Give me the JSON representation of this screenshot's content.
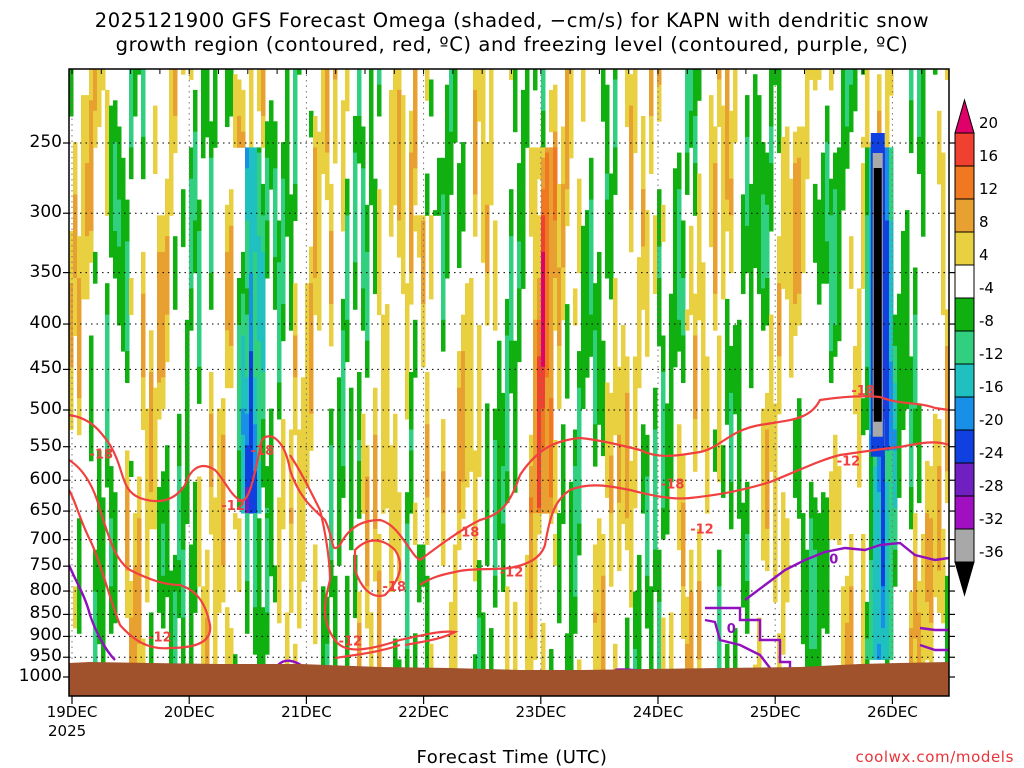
{
  "title_line1": "2025121900 GFS Forecast Omega (shaded, −cm/s) for KAPN with dendritic snow",
  "title_line2": "growth region (contoured, red, ºC) and freezing level (contoured, purple, ºC)",
  "credit": "coolwx.com/models",
  "chart_data": {
    "type": "heatmap",
    "title": "2025121900 GFS Forecast Omega (shaded, −cm/s) for KAPN with dendritic snow growth region (contoured, red, ºC) and freezing level (contoured, purple, ºC)",
    "xlabel": "Forecast Time (UTC)",
    "ylabel": "",
    "x_ticks": [
      "19DEC",
      "20DEC",
      "21DEC",
      "22DEC",
      "23DEC",
      "24DEC",
      "25DEC",
      "26DEC"
    ],
    "x_tick_year": "2025",
    "y_ticks": [
      250,
      300,
      350,
      400,
      450,
      500,
      550,
      600,
      650,
      700,
      750,
      800,
      850,
      900,
      950,
      1000
    ],
    "y_axis": "pressure (hPa), inverted",
    "xlim": [
      "2025-12-19 00Z",
      "2025-12-26 12Z"
    ],
    "ylim": [
      1020,
      200
    ],
    "grid": true,
    "colorbar": {
      "labels": [
        20,
        16,
        12,
        8,
        4,
        -4,
        -8,
        -12,
        -16,
        -20,
        -24,
        -28,
        -32,
        -36
      ],
      "colors": [
        "#e0006a",
        "#f04030",
        "#f07820",
        "#e8a030",
        "#e8d040",
        "#ffffff",
        "#10b010",
        "#30d080",
        "#20c0c0",
        "#1890e8",
        "#1040e0",
        "#7020c0",
        "#a010c0",
        "#a8a8a8",
        "#000000"
      ]
    },
    "shaded_features": [
      {
        "time": "2025-12-20 12Z",
        "p_range": [
          650,
          250
        ],
        "omega": -20
      },
      {
        "time": "2025-12-22 00Z",
        "p_range": [
          700,
          300
        ],
        "omega": 8
      },
      {
        "time": "2025-12-23 00Z",
        "p_range": [
          650,
          250
        ],
        "omega": 12
      },
      {
        "time": "2025-12-25 21Z",
        "p_range": [
          550,
          250
        ],
        "omega": -36
      },
      {
        "time": "2025-12-25 21Z",
        "p_range": [
          950,
          550
        ],
        "omega": -16
      }
    ],
    "contour_labels": [
      {
        "series": "dendritic",
        "value": -18,
        "time": "2025-12-19 06Z",
        "p": 560
      },
      {
        "series": "dendritic",
        "value": -18,
        "time": "2025-12-20 15Z",
        "p": 555
      },
      {
        "series": "dendritic",
        "value": -12,
        "time": "2025-12-20 09Z",
        "p": 640
      },
      {
        "series": "dendritic",
        "value": -12,
        "time": "2025-12-19 18Z",
        "p": 900
      },
      {
        "series": "dendritic",
        "value": -12,
        "time": "2025-12-21 09Z",
        "p": 910
      },
      {
        "series": "dendritic",
        "value": -18,
        "time": "2025-12-21 18Z",
        "p": 790
      },
      {
        "series": "dendritic",
        "value": -18,
        "time": "2025-12-22 09Z",
        "p": 685
      },
      {
        "series": "dendritic",
        "value": -12,
        "time": "2025-12-22 18Z",
        "p": 760
      },
      {
        "series": "dendritic",
        "value": -18,
        "time": "2025-12-24 03Z",
        "p": 605
      },
      {
        "series": "dendritic",
        "value": -12,
        "time": "2025-12-24 09Z",
        "p": 680
      },
      {
        "series": "dendritic",
        "value": -12,
        "time": "2025-12-25 15Z",
        "p": 570
      },
      {
        "series": "dendritic",
        "value": -18,
        "time": "2025-12-25 18Z",
        "p": 475
      },
      {
        "series": "freezing",
        "value": 0,
        "time": "2025-12-24 15Z",
        "p": 880
      },
      {
        "series": "freezing",
        "value": 0,
        "time": "2025-12-25 12Z",
        "p": 735
      }
    ]
  }
}
